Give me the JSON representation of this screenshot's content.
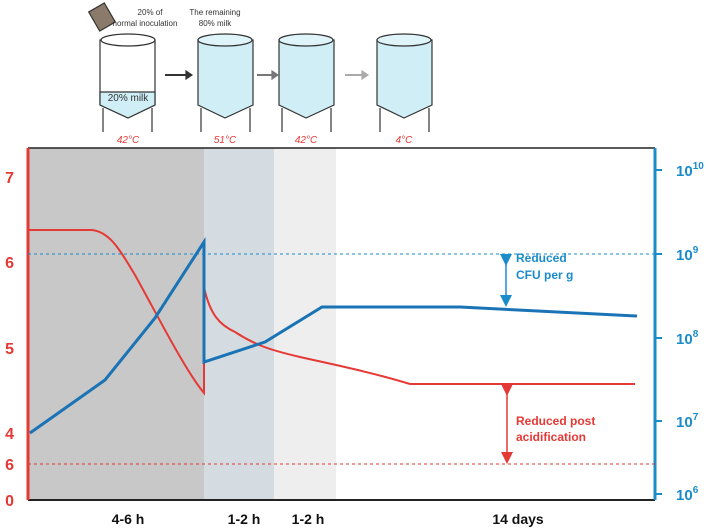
{
  "illustration": {
    "inoculation_note": [
      "20% of",
      "normal inoculation"
    ],
    "milk_note": [
      "The remaining",
      "80% milk"
    ],
    "tank_label": "20% milk",
    "temperatures": [
      "42°C",
      "51°C",
      "42°C",
      "4°C"
    ]
  },
  "chart": {
    "left_axis": [
      "7",
      "6",
      "5",
      "4",
      "6",
      "0"
    ],
    "right_axis": [
      {
        "base": "10",
        "exp": "10"
      },
      {
        "base": "10",
        "exp": "9"
      },
      {
        "base": "10",
        "exp": "8"
      },
      {
        "base": "10",
        "exp": "7"
      },
      {
        "base": "10",
        "exp": "6"
      }
    ],
    "phases": [
      "4-6 h",
      "1-2 h",
      "1-2 h",
      "14 days"
    ],
    "annotations": {
      "cfu": [
        "Reduced",
        "CFU per g"
      ],
      "acid": [
        "Reduced post",
        "acidification"
      ]
    }
  }
}
